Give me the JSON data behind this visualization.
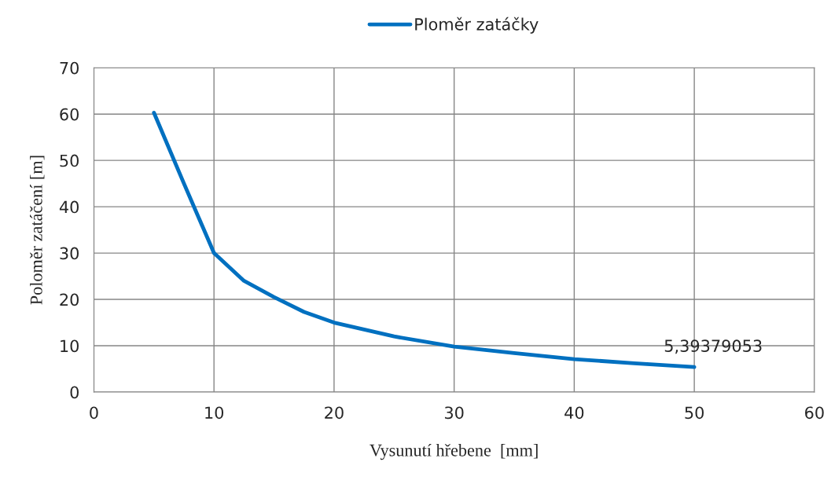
{
  "chart_data": {
    "type": "line",
    "xlabel": "Vysunutí hřebene  [mm]",
    "ylabel": "Poloměr zatáčení [m]",
    "series": [
      {
        "name": "Ploměr zatáčky",
        "color": "#0070c0",
        "x": [
          5,
          7.5,
          10,
          12.5,
          15,
          17.5,
          20,
          25,
          30,
          35,
          40,
          45,
          50
        ],
        "values": [
          60.3,
          45,
          30,
          24,
          20.5,
          17.3,
          15,
          12,
          9.8,
          8.4,
          7.1,
          6.2,
          5.39379053
        ]
      }
    ],
    "annotations": [
      {
        "text": "5,39379053",
        "x": 50,
        "y": 5.39379053
      }
    ],
    "xlim": [
      0,
      60
    ],
    "xticks": [
      0,
      10,
      20,
      30,
      40,
      50,
      60
    ],
    "ylim": [
      0,
      70
    ],
    "yticks": [
      0,
      10,
      20,
      30,
      40,
      50,
      60,
      70
    ],
    "grid": true,
    "legend": "top",
    "marker": "none",
    "line_style": "solid"
  }
}
